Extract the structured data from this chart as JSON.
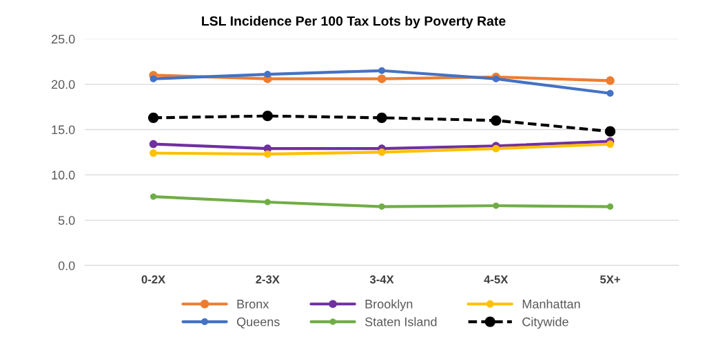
{
  "chart_data": {
    "type": "line",
    "title": "LSL Incidence Per 100 Tax Lots by Poverty Rate",
    "categories": [
      "0-2X",
      "2-3X",
      "3-4X",
      "4-5X",
      "5X+"
    ],
    "series": [
      {
        "name": "Bronx",
        "color": "#ed7d31",
        "values": [
          21.0,
          20.6,
          20.6,
          20.8,
          20.4
        ]
      },
      {
        "name": "Brooklyn",
        "color": "#7030a0",
        "values": [
          13.4,
          12.9,
          12.9,
          13.2,
          13.7
        ]
      },
      {
        "name": "Manhattan",
        "color": "#ffc000",
        "values": [
          12.4,
          12.3,
          12.5,
          12.9,
          13.4
        ]
      },
      {
        "name": "Queens",
        "color": "#4472c4",
        "values": [
          20.6,
          21.1,
          21.5,
          20.6,
          19.0
        ]
      },
      {
        "name": "Staten Island",
        "color": "#70ad47",
        "values": [
          7.6,
          7.0,
          6.5,
          6.6,
          6.5
        ]
      },
      {
        "name": "Citywide",
        "color": "#000000",
        "values": [
          16.3,
          16.5,
          16.3,
          16.0,
          14.8
        ],
        "line_style": "dashed"
      }
    ],
    "ylim": [
      0,
      25
    ],
    "yticks": [
      {
        "value": 0,
        "label": "0.0"
      },
      {
        "value": 5,
        "label": "5.0"
      },
      {
        "value": 10,
        "label": "10.0"
      },
      {
        "value": 15,
        "label": "15.0"
      },
      {
        "value": 20,
        "label": "20.0"
      },
      {
        "value": 25,
        "label": "25.0"
      }
    ],
    "grid": "y",
    "legend": "bottom",
    "marker": "circle",
    "line_style": "solid"
  }
}
